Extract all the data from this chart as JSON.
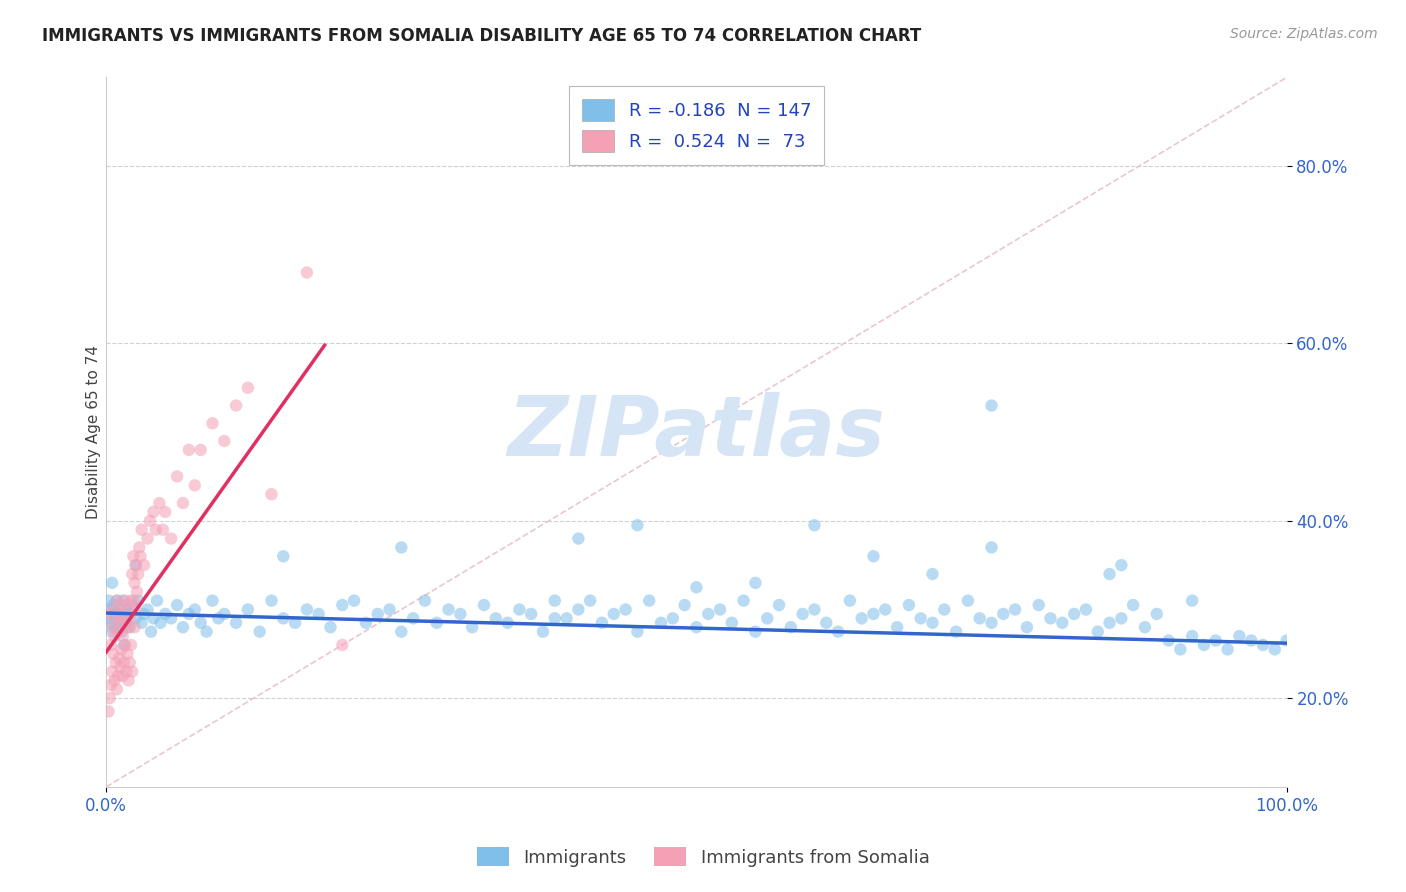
{
  "title": "IMMIGRANTS VS IMMIGRANTS FROM SOMALIA DISABILITY AGE 65 TO 74 CORRELATION CHART",
  "source": "Source: ZipAtlas.com",
  "ylabel": "Disability Age 65 to 74",
  "watermark": "ZIPatlas",
  "legend_entries": [
    {
      "label": "Immigrants",
      "color": "#7fbfea",
      "R": -0.186,
      "N": 147
    },
    {
      "label": "Immigrants from Somalia",
      "color": "#f4a0b5",
      "R": 0.524,
      "N": 73
    }
  ],
  "blue_scatter_x": [
    0.001,
    0.002,
    0.003,
    0.004,
    0.005,
    0.006,
    0.007,
    0.008,
    0.009,
    0.01,
    0.011,
    0.012,
    0.013,
    0.014,
    0.015,
    0.017,
    0.018,
    0.019,
    0.02,
    0.022,
    0.025,
    0.027,
    0.03,
    0.032,
    0.035,
    0.038,
    0.04,
    0.043,
    0.046,
    0.05,
    0.055,
    0.06,
    0.065,
    0.07,
    0.075,
    0.08,
    0.085,
    0.09,
    0.095,
    0.1,
    0.11,
    0.12,
    0.13,
    0.14,
    0.15,
    0.16,
    0.17,
    0.18,
    0.19,
    0.2,
    0.21,
    0.22,
    0.23,
    0.24,
    0.25,
    0.26,
    0.27,
    0.28,
    0.29,
    0.3,
    0.31,
    0.32,
    0.33,
    0.34,
    0.35,
    0.36,
    0.37,
    0.38,
    0.39,
    0.4,
    0.41,
    0.42,
    0.43,
    0.44,
    0.45,
    0.46,
    0.47,
    0.48,
    0.49,
    0.5,
    0.51,
    0.52,
    0.53,
    0.54,
    0.55,
    0.56,
    0.57,
    0.58,
    0.59,
    0.6,
    0.61,
    0.62,
    0.63,
    0.64,
    0.65,
    0.66,
    0.67,
    0.68,
    0.69,
    0.7,
    0.71,
    0.72,
    0.73,
    0.74,
    0.75,
    0.76,
    0.77,
    0.78,
    0.79,
    0.8,
    0.81,
    0.82,
    0.83,
    0.84,
    0.85,
    0.86,
    0.87,
    0.88,
    0.89,
    0.9,
    0.91,
    0.92,
    0.93,
    0.94,
    0.95,
    0.96,
    0.97,
    0.98,
    0.99,
    1.0,
    0.005,
    0.015,
    0.025,
    0.15,
    0.25,
    0.4,
    0.55,
    0.65,
    0.75,
    0.86,
    0.75,
    0.85,
    0.92,
    0.6,
    0.7,
    0.45,
    0.5,
    0.38
  ],
  "blue_scatter_y": [
    0.29,
    0.31,
    0.285,
    0.3,
    0.275,
    0.305,
    0.295,
    0.28,
    0.31,
    0.295,
    0.285,
    0.3,
    0.275,
    0.31,
    0.29,
    0.285,
    0.3,
    0.295,
    0.28,
    0.305,
    0.29,
    0.31,
    0.285,
    0.295,
    0.3,
    0.275,
    0.29,
    0.31,
    0.285,
    0.295,
    0.29,
    0.305,
    0.28,
    0.295,
    0.3,
    0.285,
    0.275,
    0.31,
    0.29,
    0.295,
    0.285,
    0.3,
    0.275,
    0.31,
    0.29,
    0.285,
    0.3,
    0.295,
    0.28,
    0.305,
    0.31,
    0.285,
    0.295,
    0.3,
    0.275,
    0.29,
    0.31,
    0.285,
    0.3,
    0.295,
    0.28,
    0.305,
    0.29,
    0.285,
    0.3,
    0.295,
    0.275,
    0.31,
    0.29,
    0.3,
    0.31,
    0.285,
    0.295,
    0.3,
    0.275,
    0.31,
    0.285,
    0.29,
    0.305,
    0.28,
    0.295,
    0.3,
    0.285,
    0.31,
    0.275,
    0.29,
    0.305,
    0.28,
    0.295,
    0.3,
    0.285,
    0.275,
    0.31,
    0.29,
    0.295,
    0.3,
    0.28,
    0.305,
    0.29,
    0.285,
    0.3,
    0.275,
    0.31,
    0.29,
    0.285,
    0.295,
    0.3,
    0.28,
    0.305,
    0.29,
    0.285,
    0.295,
    0.3,
    0.275,
    0.285,
    0.29,
    0.305,
    0.28,
    0.295,
    0.265,
    0.255,
    0.27,
    0.26,
    0.265,
    0.255,
    0.27,
    0.265,
    0.26,
    0.255,
    0.265,
    0.33,
    0.26,
    0.35,
    0.36,
    0.37,
    0.38,
    0.33,
    0.36,
    0.37,
    0.35,
    0.53,
    0.34,
    0.31,
    0.395,
    0.34,
    0.395,
    0.325,
    0.29
  ],
  "pink_scatter_x": [
    0.001,
    0.002,
    0.003,
    0.004,
    0.004,
    0.005,
    0.005,
    0.006,
    0.006,
    0.007,
    0.007,
    0.008,
    0.008,
    0.009,
    0.009,
    0.01,
    0.01,
    0.011,
    0.011,
    0.012,
    0.012,
    0.013,
    0.013,
    0.014,
    0.014,
    0.015,
    0.015,
    0.016,
    0.016,
    0.017,
    0.017,
    0.018,
    0.018,
    0.019,
    0.019,
    0.02,
    0.02,
    0.021,
    0.021,
    0.022,
    0.022,
    0.023,
    0.023,
    0.024,
    0.024,
    0.025,
    0.025,
    0.026,
    0.027,
    0.028,
    0.029,
    0.03,
    0.032,
    0.035,
    0.037,
    0.04,
    0.042,
    0.045,
    0.048,
    0.05,
    0.055,
    0.06,
    0.065,
    0.07,
    0.075,
    0.08,
    0.09,
    0.1,
    0.11,
    0.12,
    0.14,
    0.17,
    0.2
  ],
  "pink_scatter_y": [
    0.295,
    0.185,
    0.2,
    0.215,
    0.26,
    0.23,
    0.28,
    0.25,
    0.3,
    0.22,
    0.27,
    0.24,
    0.29,
    0.21,
    0.31,
    0.225,
    0.275,
    0.245,
    0.295,
    0.235,
    0.285,
    0.255,
    0.305,
    0.225,
    0.27,
    0.24,
    0.29,
    0.26,
    0.31,
    0.23,
    0.28,
    0.25,
    0.3,
    0.22,
    0.28,
    0.24,
    0.29,
    0.26,
    0.31,
    0.23,
    0.34,
    0.31,
    0.36,
    0.28,
    0.33,
    0.3,
    0.35,
    0.32,
    0.34,
    0.37,
    0.36,
    0.39,
    0.35,
    0.38,
    0.4,
    0.41,
    0.39,
    0.42,
    0.39,
    0.41,
    0.38,
    0.45,
    0.42,
    0.48,
    0.44,
    0.48,
    0.51,
    0.49,
    0.53,
    0.55,
    0.43,
    0.68,
    0.26
  ],
  "blue_line_x": [
    0.0,
    1.0
  ],
  "blue_line_y_start": 0.296,
  "blue_line_y_end": 0.262,
  "pink_line_x": [
    0.0,
    0.185
  ],
  "pink_line_y_start": 0.252,
  "pink_line_y_end": 0.598,
  "ref_line_color": "#e8c0c8",
  "blue_color": "#7fbfea",
  "pink_color": "#f4a0b5",
  "blue_line_color": "#3366cc",
  "pink_line_color": "#e03060",
  "xlim": [
    0.0,
    1.0
  ],
  "ylim": [
    0.1,
    0.9
  ],
  "xticks": [
    0.0,
    1.0
  ],
  "yticks": [
    0.2,
    0.4,
    0.6,
    0.8
  ],
  "grid_yticks": [
    0.2,
    0.4,
    0.6,
    0.8
  ],
  "background_color": "#ffffff",
  "title_fontsize": 12,
  "axis_label_fontsize": 11,
  "tick_fontsize": 12,
  "watermark_fontsize": 60,
  "watermark_color": "#d5e5f5",
  "source_fontsize": 10,
  "legend_fontsize": 13,
  "scatter_size": 80,
  "scatter_alpha": 0.55,
  "tick_color": "#3366cc",
  "R_color": "#2244bb"
}
